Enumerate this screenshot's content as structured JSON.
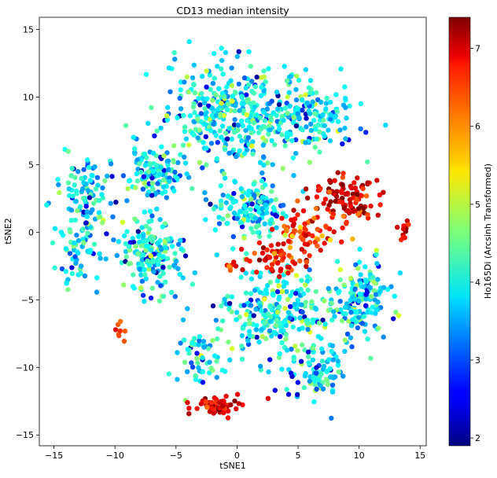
{
  "chart_data": {
    "type": "scatter",
    "title": "CD13 median intensity",
    "xlabel": "tSNE1",
    "ylabel": "tSNE2",
    "xlim": [
      -16.2,
      15.5
    ],
    "ylim": [
      -15.8,
      15.9
    ],
    "xticks": [
      -15,
      -10,
      -5,
      0,
      5,
      10,
      15
    ],
    "yticks": [
      -15,
      -10,
      -5,
      0,
      5,
      10,
      15
    ],
    "colorbar": {
      "label": "Ho165Di (Arcsinh Transformed)",
      "range": [
        1.9,
        7.4
      ],
      "ticks": [
        2,
        3,
        4,
        5,
        6,
        7
      ],
      "colormap": "jet"
    },
    "grid": false,
    "legend": "none",
    "clusters": [
      {
        "center": [
          -1.0,
          9.0
        ],
        "spread": [
          3.2,
          2.6
        ],
        "n": 320,
        "mean": 3.9,
        "sd": 0.45
      },
      {
        "center": [
          5.5,
          8.5
        ],
        "spread": [
          3.0,
          2.3
        ],
        "n": 200,
        "mean": 3.9,
        "sd": 0.45
      },
      {
        "center": [
          -12.5,
          2.5
        ],
        "spread": [
          1.6,
          2.4
        ],
        "n": 110,
        "mean": 3.9,
        "sd": 0.5
      },
      {
        "center": [
          -7.0,
          4.5
        ],
        "spread": [
          2.0,
          1.6
        ],
        "n": 130,
        "mean": 3.9,
        "sd": 0.5
      },
      {
        "center": [
          -7.0,
          -1.5
        ],
        "spread": [
          2.0,
          2.2
        ],
        "n": 190,
        "mean": 4.0,
        "sd": 0.45
      },
      {
        "center": [
          1.0,
          1.8
        ],
        "spread": [
          2.2,
          1.5
        ],
        "n": 160,
        "mean": 4.0,
        "sd": 0.45
      },
      {
        "center": [
          3.5,
          -6.0
        ],
        "spread": [
          3.6,
          2.2
        ],
        "n": 280,
        "mean": 4.0,
        "sd": 0.45
      },
      {
        "center": [
          10.5,
          -5.0
        ],
        "spread": [
          1.6,
          2.3
        ],
        "n": 150,
        "mean": 3.9,
        "sd": 0.45
      },
      {
        "center": [
          6.5,
          -10.5
        ],
        "spread": [
          2.0,
          1.5
        ],
        "n": 90,
        "mean": 3.7,
        "sd": 0.55
      },
      {
        "center": [
          -3.0,
          -9.5
        ],
        "spread": [
          1.5,
          1.4
        ],
        "n": 60,
        "mean": 3.9,
        "sd": 0.5
      },
      {
        "center": [
          -13.0,
          -2.0
        ],
        "spread": [
          1.2,
          1.5
        ],
        "n": 40,
        "mean": 3.9,
        "sd": 0.5
      },
      {
        "center": [
          9.0,
          2.3
        ],
        "spread": [
          2.0,
          1.3
        ],
        "n": 110,
        "mean": 6.8,
        "sd": 0.4
      },
      {
        "center": [
          5.5,
          0.0
        ],
        "spread": [
          1.5,
          1.3
        ],
        "n": 70,
        "mean": 6.5,
        "sd": 0.45
      },
      {
        "center": [
          3.0,
          -2.0
        ],
        "spread": [
          1.5,
          1.0
        ],
        "n": 50,
        "mean": 6.7,
        "sd": 0.4
      },
      {
        "center": [
          13.6,
          0.0
        ],
        "spread": [
          0.3,
          0.6
        ],
        "n": 12,
        "mean": 6.9,
        "sd": 0.3
      },
      {
        "center": [
          -1.5,
          -12.9
        ],
        "spread": [
          1.7,
          0.6
        ],
        "n": 60,
        "mean": 6.9,
        "sd": 0.35
      },
      {
        "center": [
          -9.4,
          -7.4
        ],
        "spread": [
          0.5,
          0.6
        ],
        "n": 8,
        "mean": 6.3,
        "sd": 0.2
      },
      {
        "center": [
          -0.3,
          -2.6
        ],
        "spread": [
          0.6,
          0.3
        ],
        "n": 8,
        "mean": 6.4,
        "sd": 0.4
      }
    ]
  }
}
